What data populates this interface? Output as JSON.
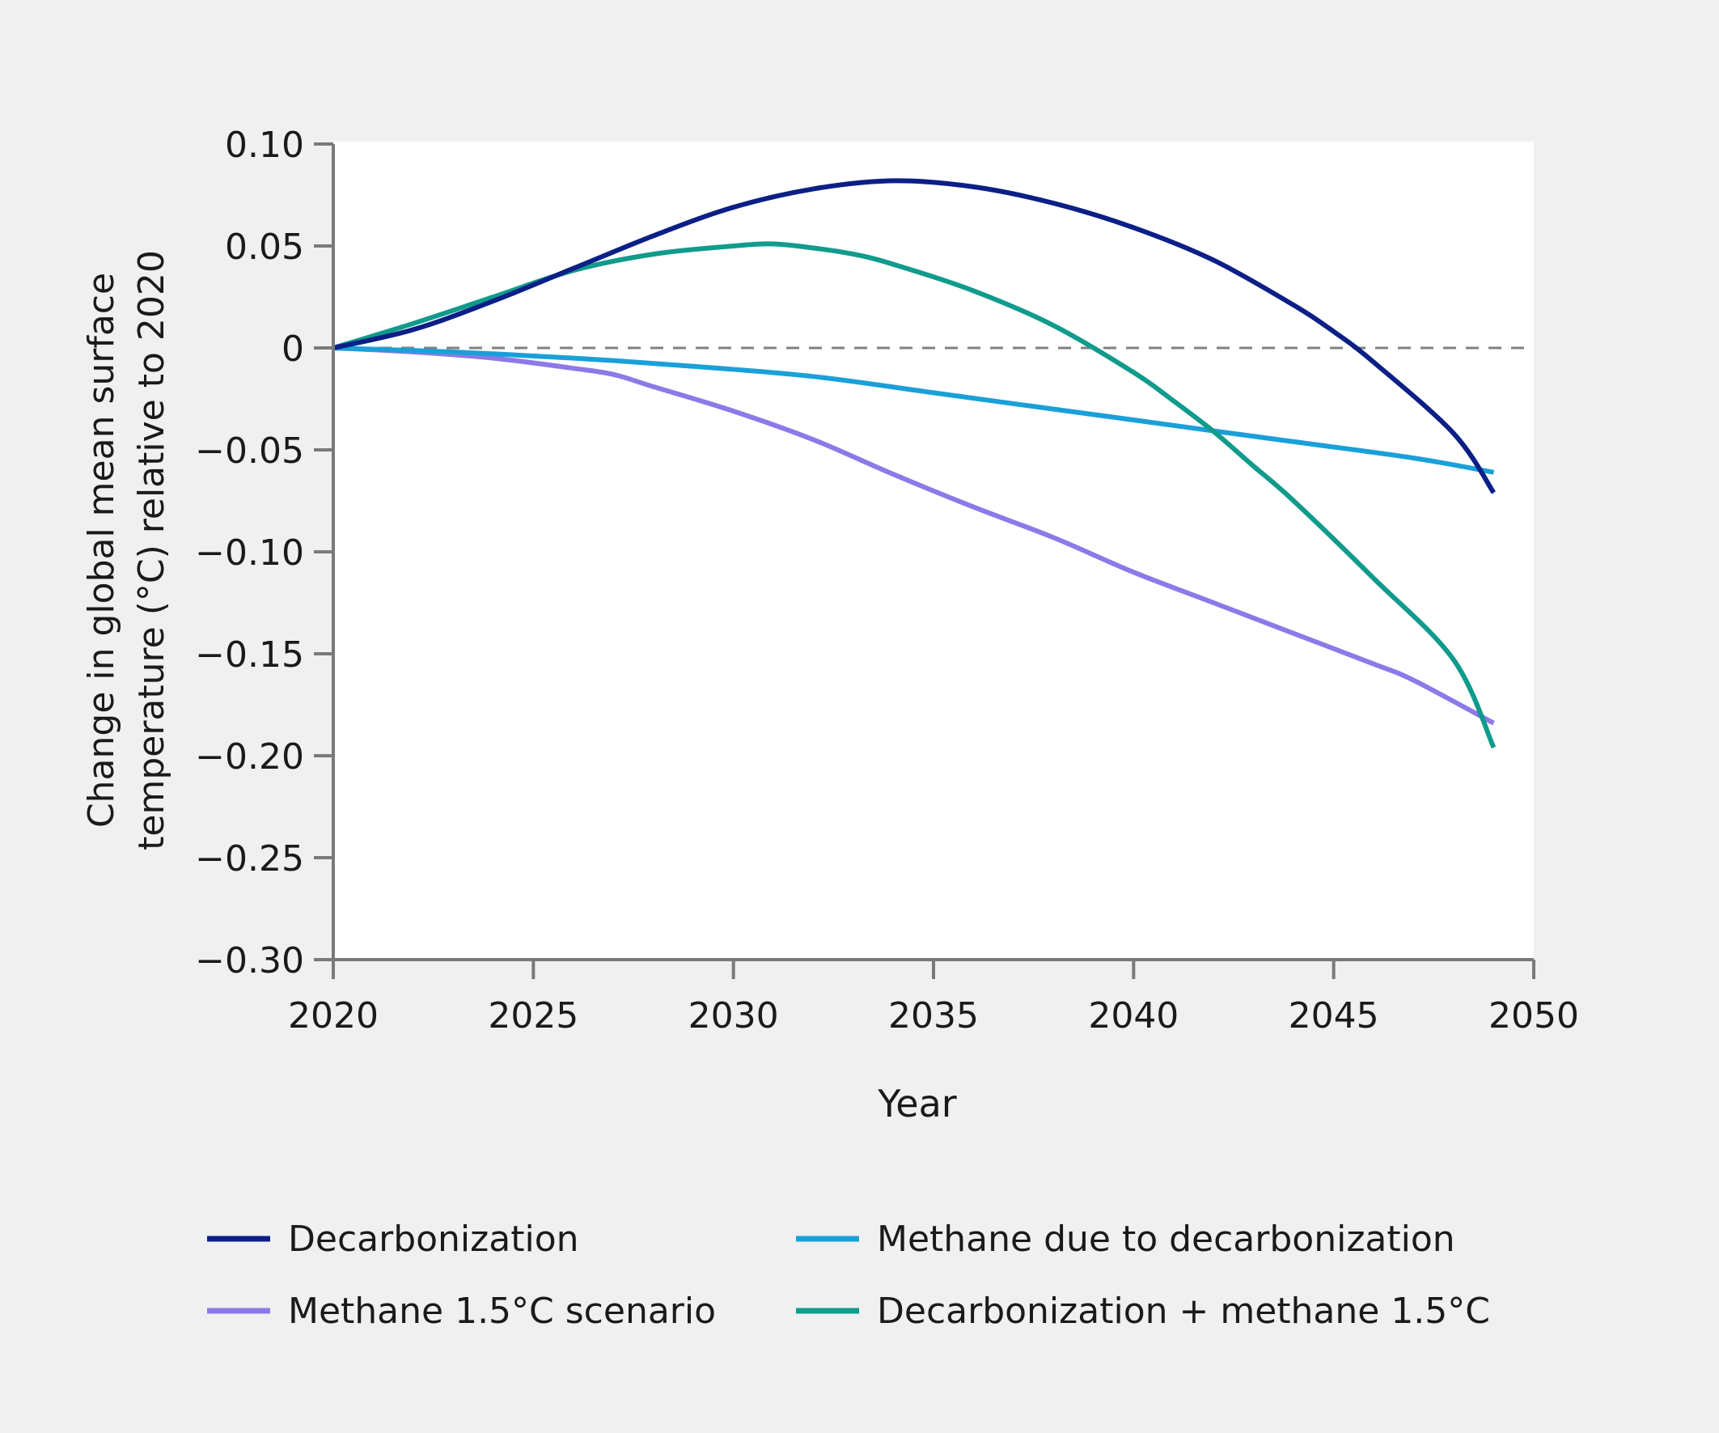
{
  "chart_data": {
    "type": "line",
    "title": "",
    "xlabel": "Year",
    "ylabel_lines": [
      "Change in global mean surface",
      "temperature (°C) relative to 2020"
    ],
    "xlim": [
      2020,
      2050
    ],
    "ylim": [
      -0.3,
      0.1
    ],
    "x_ticks": [
      {
        "value": 2020,
        "label": "2020"
      },
      {
        "value": 2025,
        "label": "2025"
      },
      {
        "value": 2030,
        "label": "2030"
      },
      {
        "value": 2035,
        "label": "2035"
      },
      {
        "value": 2040,
        "label": "2040"
      },
      {
        "value": 2045,
        "label": "2045"
      },
      {
        "value": 2050,
        "label": "2050"
      }
    ],
    "y_ticks": [
      {
        "value": 0.1,
        "label": "0.10"
      },
      {
        "value": 0.05,
        "label": "0.05"
      },
      {
        "value": 0,
        "label": "0"
      },
      {
        "value": -0.05,
        "label": "−0.05"
      },
      {
        "value": -0.1,
        "label": "−0.10"
      },
      {
        "value": -0.15,
        "label": "−0.15"
      },
      {
        "value": -0.2,
        "label": "−0.20"
      },
      {
        "value": -0.25,
        "label": "−0.25"
      },
      {
        "value": -0.3,
        "label": "−0.30"
      }
    ],
    "reference_line": {
      "y": 0,
      "style": "dashed",
      "color": "#808080"
    },
    "series": [
      {
        "name": "Decarbonization",
        "color": "#0b1f86",
        "x": [
          2020,
          2022,
          2024,
          2026,
          2028,
          2030,
          2032,
          2034,
          2036,
          2038,
          2040,
          2042,
          2044,
          2045,
          2046,
          2048,
          2049
        ],
        "y": [
          0,
          0.009,
          0.023,
          0.039,
          0.055,
          0.069,
          0.078,
          0.082,
          0.079,
          0.071,
          0.059,
          0.043,
          0.021,
          0.008,
          -0.007,
          -0.042,
          -0.071
        ]
      },
      {
        "name": "Methane due to decarbonization",
        "color": "#1aa0d8",
        "x": [
          2020,
          2023,
          2026,
          2029,
          2032,
          2035,
          2038,
          2041,
          2044,
          2047,
          2049
        ],
        "y": [
          0,
          -0.002,
          -0.005,
          -0.009,
          -0.014,
          -0.022,
          -0.03,
          -0.038,
          -0.046,
          -0.054,
          -0.061
        ]
      },
      {
        "name": "Methane 1.5°C scenario",
        "color": "#8d79e8",
        "x": [
          2020,
          2022,
          2024,
          2026,
          2027,
          2028,
          2030,
          2032,
          2034,
          2036,
          2038,
          2040,
          2042,
          2044,
          2046,
          2047,
          2049
        ],
        "y": [
          0,
          -0.002,
          -0.005,
          -0.01,
          -0.013,
          -0.019,
          -0.031,
          -0.045,
          -0.062,
          -0.078,
          -0.093,
          -0.11,
          -0.125,
          -0.14,
          -0.155,
          -0.163,
          -0.184
        ]
      },
      {
        "name": "Decarbonization + methane 1.5°C",
        "color": "#109b8c",
        "x": [
          2020,
          2022,
          2024,
          2026,
          2028,
          2030,
          2031,
          2032,
          2033,
          2034,
          2036,
          2038,
          2040,
          2041,
          2042,
          2043,
          2044,
          2046,
          2048,
          2049
        ],
        "y": [
          0,
          0.012,
          0.025,
          0.038,
          0.046,
          0.05,
          0.051,
          0.049,
          0.046,
          0.041,
          0.028,
          0.011,
          -0.012,
          -0.026,
          -0.041,
          -0.058,
          -0.075,
          -0.113,
          -0.153,
          -0.196
        ]
      }
    ],
    "legend": {
      "placement": "bottom",
      "items": [
        {
          "label": "Decarbonization",
          "color": "#0b1f86"
        },
        {
          "label": "Methane due to decarbonization",
          "color": "#1aa0d8"
        },
        {
          "label": "Methane 1.5°C scenario",
          "color": "#8d79e8"
        },
        {
          "label": "Decarbonization + methane 1.5°C",
          "color": "#109b8c"
        }
      ]
    }
  }
}
